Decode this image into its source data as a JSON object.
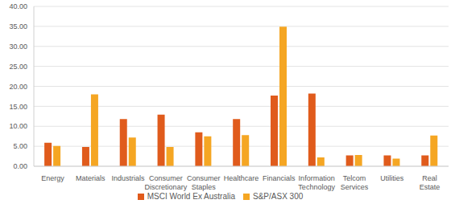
{
  "chart_data": {
    "type": "bar",
    "categories": [
      "Energy",
      "Materials",
      "Industrials",
      "Consumer Discretionary",
      "Consumer Staples",
      "Healthcare",
      "Financials",
      "Information Technology",
      "Telcom Services",
      "Utilities",
      "Real Estate"
    ],
    "series": [
      {
        "name": "MSCI World Ex Australia",
        "color": "#e05b1c",
        "values": [
          5.9,
          4.8,
          11.8,
          12.9,
          8.5,
          11.8,
          17.7,
          18.2,
          2.7,
          2.7,
          2.7
        ]
      },
      {
        "name": "S&P/ASX 300",
        "color": "#f5a623",
        "values": [
          5.1,
          18.0,
          7.2,
          4.8,
          7.5,
          7.8,
          34.9,
          2.2,
          2.8,
          1.9,
          7.7
        ]
      }
    ],
    "ylim": [
      0,
      40
    ],
    "yticks": [
      {
        "value": 0,
        "label": "0.00"
      },
      {
        "value": 5,
        "label": "5.00"
      },
      {
        "value": 10,
        "label": "10.00"
      },
      {
        "value": 15,
        "label": "15.00"
      },
      {
        "value": 20,
        "label": "20.00"
      },
      {
        "value": 25,
        "label": "25.00"
      },
      {
        "value": 30,
        "label": "30.00"
      },
      {
        "value": 35,
        "label": "35.00"
      },
      {
        "value": 40,
        "label": "40.00"
      }
    ],
    "grid": true,
    "legend": "bottom"
  }
}
